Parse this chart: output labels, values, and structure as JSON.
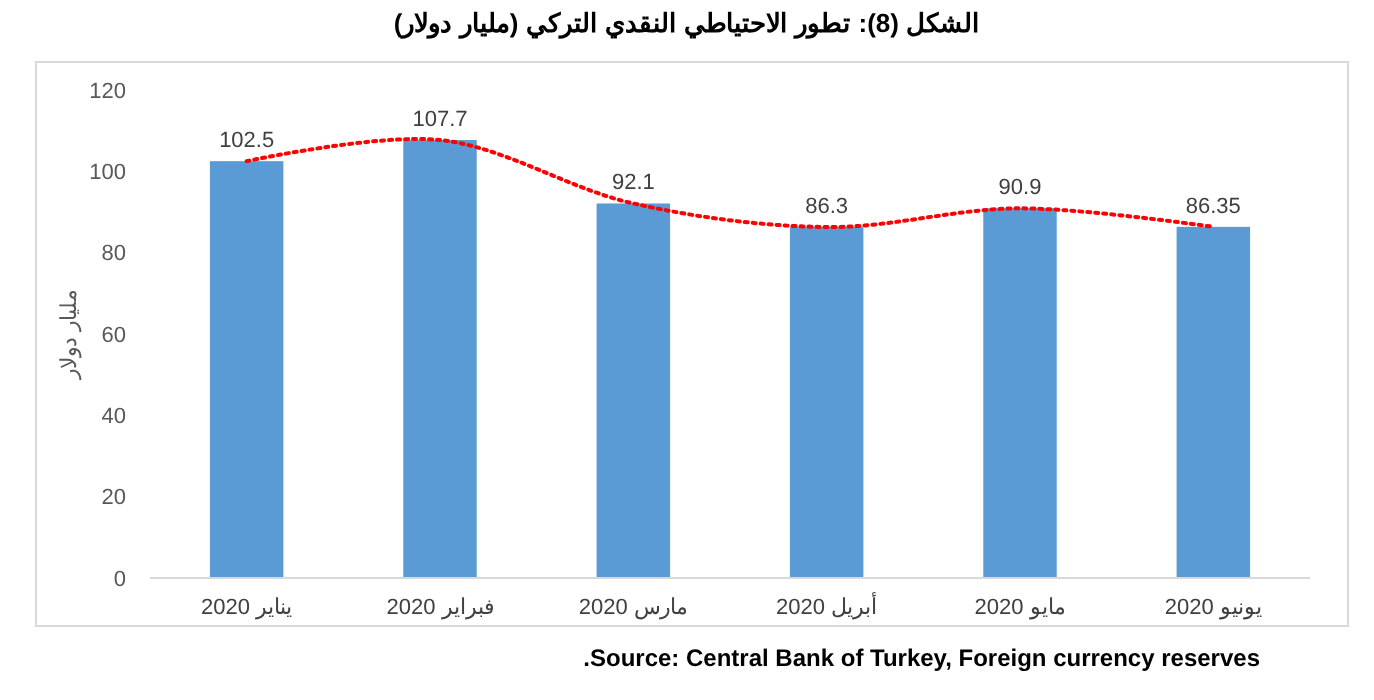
{
  "chart_data": {
    "type": "bar",
    "title": "الشكل (8): تطور الاحتياطي النقدي التركي (مليار دولار)",
    "ylabel": "مليار دولار",
    "categories": [
      "يناير 2020",
      "فبراير 2020",
      "مارس 2020",
      "أبريل 2020",
      "مايو 2020",
      "يونيو 2020"
    ],
    "series": [
      {
        "color": "#5b9bd5",
        "values": [
          102.5,
          107.7,
          92.1,
          86.3,
          90.9,
          86.35
        ]
      },
      {
        "type": "line",
        "color": "#ff0000",
        "line_style": "dotted",
        "values": [
          102.5,
          107.7,
          92.1,
          86.3,
          90.9,
          86.35
        ]
      }
    ],
    "value_labels": [
      "102.5",
      "107.7",
      "92.1",
      "86.3",
      "90.9",
      "86.35"
    ],
    "ylim": [
      0,
      120
    ],
    "yticks": [
      0,
      20,
      40,
      60,
      80,
      100,
      120
    ],
    "grid": false,
    "annotations": [
      ".Source: Central Bank of Turkey, Foreign currency reserves"
    ]
  }
}
